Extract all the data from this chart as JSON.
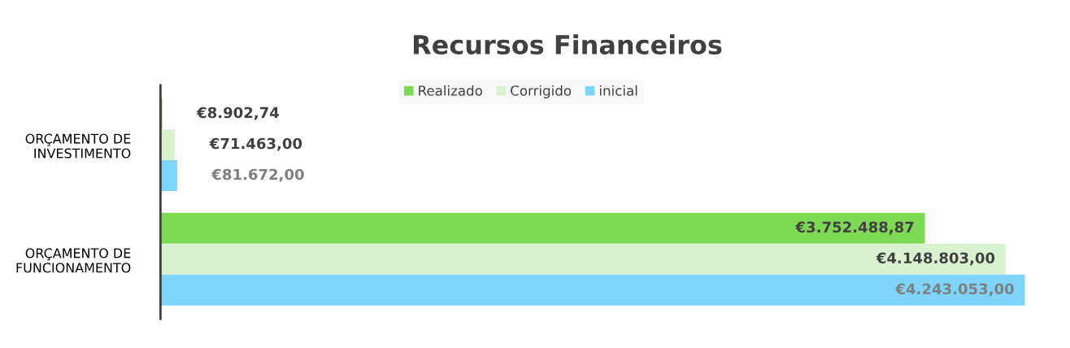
{
  "chart_data": {
    "type": "bar",
    "orientation": "horizontal",
    "title": "Recursos Financeiros",
    "categories": [
      "ORÇAMENTO DE\nINVESTIMENTO",
      "ORÇAMENTO DE\nFUNCIONAMENTO"
    ],
    "series": [
      {
        "name": "Realizado",
        "color": "#7ed957",
        "values": [
          8902.74,
          3752488.87
        ],
        "value_labels": [
          "€8.902,74",
          "€3.752.488,87"
        ]
      },
      {
        "name": "Corrigido",
        "color": "#d9f2d0",
        "values": [
          71463.0,
          4148803.0
        ],
        "value_labels": [
          "€71.463,00",
          "€4.148.803,00"
        ]
      },
      {
        "name": "inicial",
        "color": "#7fd4fc",
        "values": [
          81672.0,
          4243053.0
        ],
        "value_labels": [
          "€81.672,00",
          "€4.243.053,00"
        ]
      }
    ],
    "legend": "top",
    "grid": false,
    "tick_labels": "y"
  }
}
